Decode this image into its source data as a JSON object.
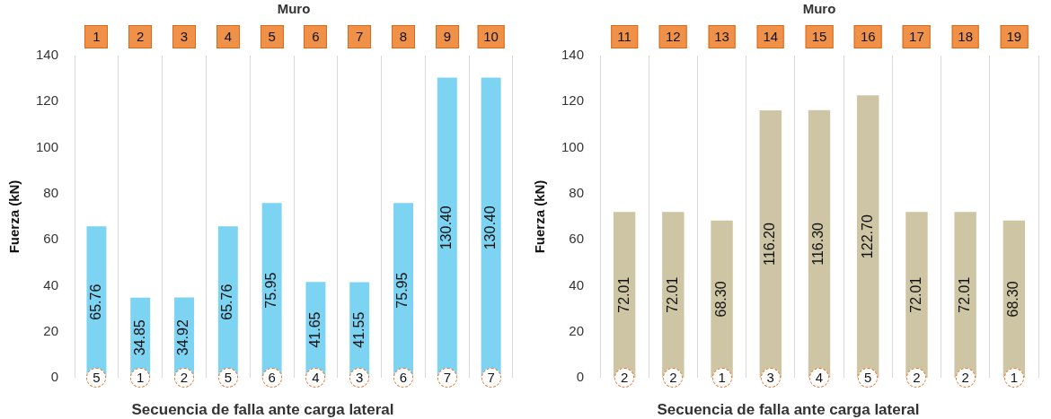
{
  "chart_data": [
    {
      "type": "bar",
      "x2label": "Muro",
      "xlabel": "Secuencia de falla ante carga lateral",
      "ylabel": "Fuerza (kN)",
      "categories": [
        "1",
        "2",
        "3",
        "4",
        "5",
        "6",
        "7",
        "8",
        "9",
        "10"
      ],
      "values": [
        65.76,
        34.85,
        34.92,
        65.76,
        75.95,
        41.65,
        41.55,
        75.95,
        130.4,
        130.4
      ],
      "value_labels": [
        "65.76",
        "34.85",
        "34.92",
        "65.76",
        "75.95",
        "41.65",
        "41.55",
        "75.95",
        "130.40",
        "130.40"
      ],
      "color": "#7dd3f2",
      "ylim": [
        0,
        140
      ],
      "yticks": [
        0,
        20,
        40,
        60,
        80,
        100,
        120,
        140
      ],
      "grid": "x",
      "annotations": [
        {
          "text": "5",
          "x": "1",
          "y": 0
        },
        {
          "text": "1",
          "x": "2",
          "y": 0
        },
        {
          "text": "2",
          "x": "3",
          "y": 0
        },
        {
          "text": "5",
          "x": "4",
          "y": 0
        },
        {
          "text": "6",
          "x": "5",
          "y": 0
        },
        {
          "text": "4",
          "x": "6",
          "y": 0
        },
        {
          "text": "3",
          "x": "7",
          "y": 0
        },
        {
          "text": "6",
          "x": "8",
          "y": 0
        },
        {
          "text": "7",
          "x": "9",
          "y": 0
        },
        {
          "text": "7",
          "x": "10",
          "y": 0
        }
      ]
    },
    {
      "type": "bar",
      "x2label": "Muro",
      "xlabel": "Secuencia de falla ante carga lateral",
      "ylabel": "Fuerza (kN)",
      "categories": [
        "11",
        "12",
        "13",
        "14",
        "15",
        "16",
        "17",
        "18",
        "19"
      ],
      "values": [
        72.01,
        72.01,
        68.3,
        116.2,
        116.3,
        122.7,
        72.01,
        72.01,
        68.3
      ],
      "value_labels": [
        "72.01",
        "72.01",
        "68.30",
        "116.20",
        "116.30",
        "122.70",
        "72.01",
        "72.01",
        "68.30"
      ],
      "color": "#cdc5a3",
      "ylim": [
        0,
        140
      ],
      "yticks": [
        0,
        20,
        40,
        60,
        80,
        100,
        120,
        140
      ],
      "grid": "x",
      "annotations": [
        {
          "text": "2",
          "x": "11",
          "y": 0
        },
        {
          "text": "2",
          "x": "12",
          "y": 0
        },
        {
          "text": "1",
          "x": "13",
          "y": 0
        },
        {
          "text": "3",
          "x": "14",
          "y": 0
        },
        {
          "text": "4",
          "x": "15",
          "y": 0
        },
        {
          "text": "5",
          "x": "16",
          "y": 0
        },
        {
          "text": "2",
          "x": "17",
          "y": 0
        },
        {
          "text": "2",
          "x": "18",
          "y": 0
        },
        {
          "text": "1",
          "x": "19",
          "y": 0
        }
      ]
    }
  ]
}
